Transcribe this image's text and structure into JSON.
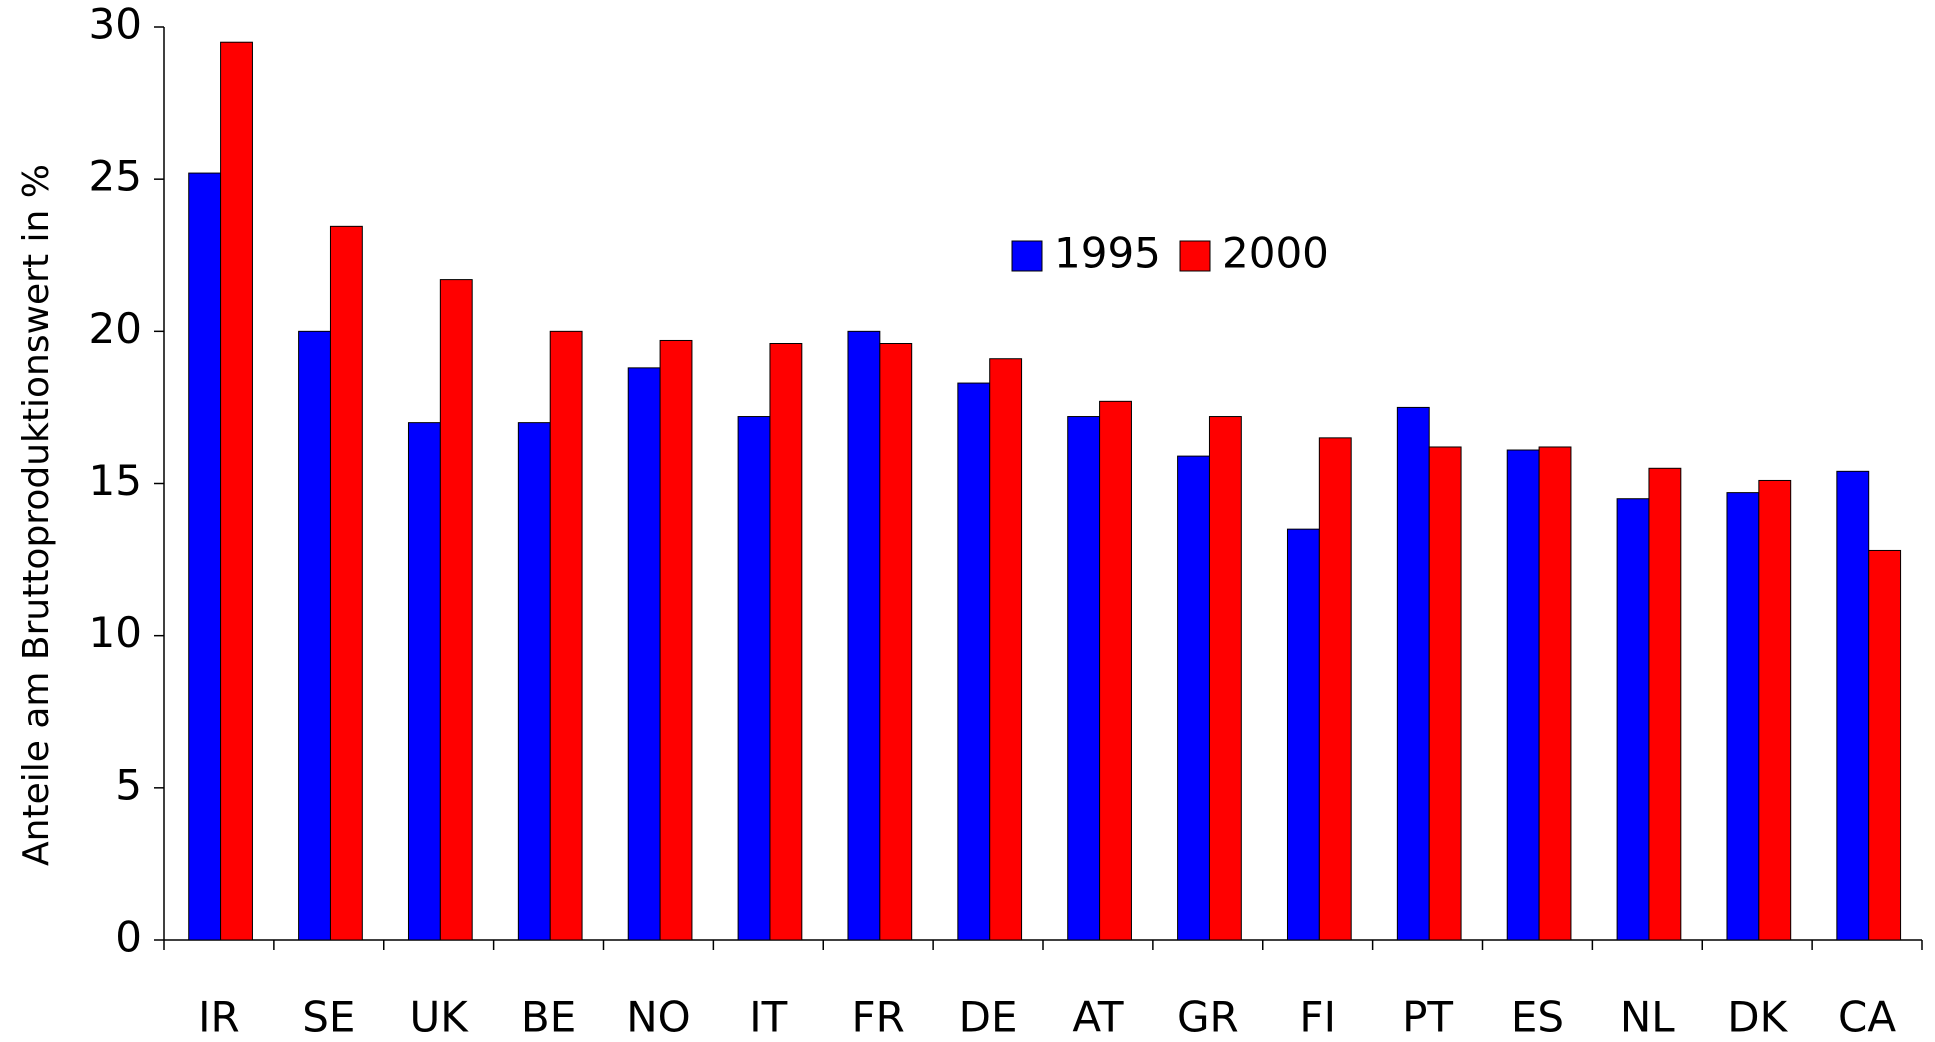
{
  "chart_data": {
    "type": "bar",
    "y_label": "Anteile am Bruttoproduktionswert in %",
    "categories": [
      "IR",
      "SE",
      "UK",
      "BE",
      "NO",
      "IT",
      "FR",
      "DE",
      "AT",
      "GR",
      "FI",
      "PT",
      "ES",
      "NL",
      "DK",
      "CA"
    ],
    "series": [
      {
        "name": "1995",
        "color": "#0000ff",
        "values": [
          25.2,
          20.0,
          17.0,
          17.0,
          18.8,
          17.2,
          20.0,
          18.3,
          17.2,
          15.9,
          13.5,
          17.5,
          16.1,
          14.5,
          14.7,
          15.4
        ]
      },
      {
        "name": "2000",
        "color": "#ff0000",
        "values": [
          29.5,
          23.45,
          21.7,
          20.0,
          19.7,
          19.6,
          19.6,
          19.1,
          17.7,
          17.2,
          16.5,
          16.2,
          16.2,
          15.5,
          15.1,
          12.8
        ]
      }
    ],
    "ylim": [
      0,
      30
    ],
    "yticks": [
      0,
      5,
      10,
      15,
      20,
      25,
      30
    ],
    "grid": false,
    "legend": "top-center"
  }
}
